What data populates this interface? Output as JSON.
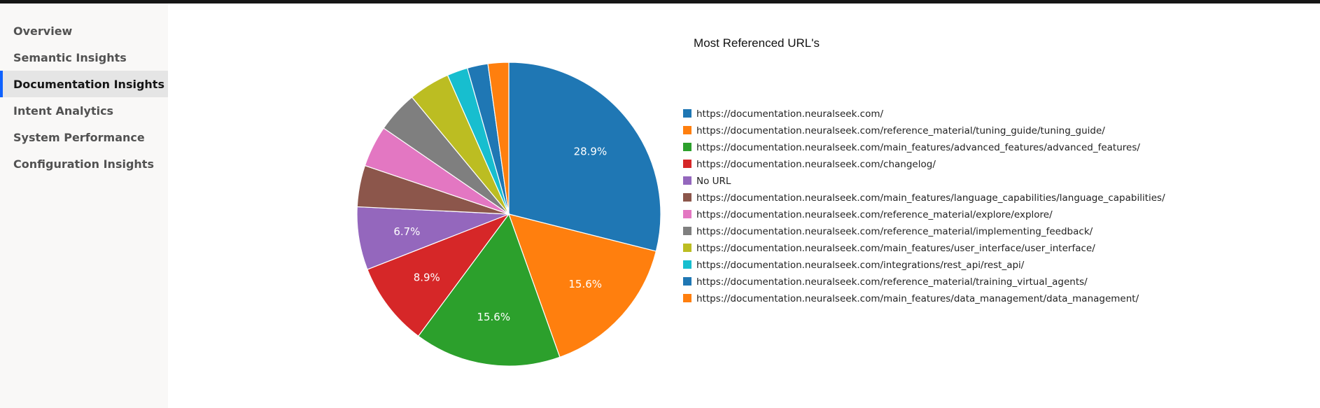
{
  "sidebar": {
    "items": [
      {
        "label": "Overview",
        "active": false
      },
      {
        "label": "Semantic Insights",
        "active": false
      },
      {
        "label": "Documentation Insights",
        "active": true
      },
      {
        "label": "Intent Analytics",
        "active": false
      },
      {
        "label": "System Performance",
        "active": false
      },
      {
        "label": "Configuration Insights",
        "active": false
      }
    ]
  },
  "chart_data": {
    "type": "pie",
    "title": "Most Referenced URL's",
    "legend_position": "right",
    "slices": [
      {
        "label": "https://documentation.neuralseek.com/",
        "value": 28.9,
        "data_label": "28.9%",
        "color": "#1f77b4"
      },
      {
        "label": "https://documentation.neuralseek.com/reference_material/tuning_guide/tuning_guide/",
        "value": 15.6,
        "data_label": "15.6%",
        "color": "#ff7f0e"
      },
      {
        "label": "https://documentation.neuralseek.com/main_features/advanced_features/advanced_features/",
        "value": 15.6,
        "data_label": "15.6%",
        "color": "#2ca02c"
      },
      {
        "label": "https://documentation.neuralseek.com/changelog/",
        "value": 8.9,
        "data_label": "8.9%",
        "color": "#d62728"
      },
      {
        "label": "No URL",
        "value": 6.7,
        "data_label": "6.7%",
        "color": "#9467bd"
      },
      {
        "label": "https://documentation.neuralseek.com/main_features/language_capabilities/language_capabilities/",
        "value": 4.4,
        "data_label": "",
        "color": "#8c564b"
      },
      {
        "label": "https://documentation.neuralseek.com/reference_material/explore/explore/",
        "value": 4.4,
        "data_label": "",
        "color": "#e377c2"
      },
      {
        "label": "https://documentation.neuralseek.com/reference_material/implementing_feedback/",
        "value": 4.4,
        "data_label": "",
        "color": "#7f7f7f"
      },
      {
        "label": "https://documentation.neuralseek.com/main_features/user_interface/user_interface/",
        "value": 4.4,
        "data_label": "",
        "color": "#bcbd22"
      },
      {
        "label": "https://documentation.neuralseek.com/integrations/rest_api/rest_api/",
        "value": 2.2,
        "data_label": "",
        "color": "#17becf"
      },
      {
        "label": "https://documentation.neuralseek.com/reference_material/training_virtual_agents/",
        "value": 2.2,
        "data_label": "",
        "color": "#1f77b4"
      },
      {
        "label": "https://documentation.neuralseek.com/main_features/data_management/data_management/",
        "value": 2.2,
        "data_label": "",
        "color": "#ff7f0e"
      }
    ]
  }
}
